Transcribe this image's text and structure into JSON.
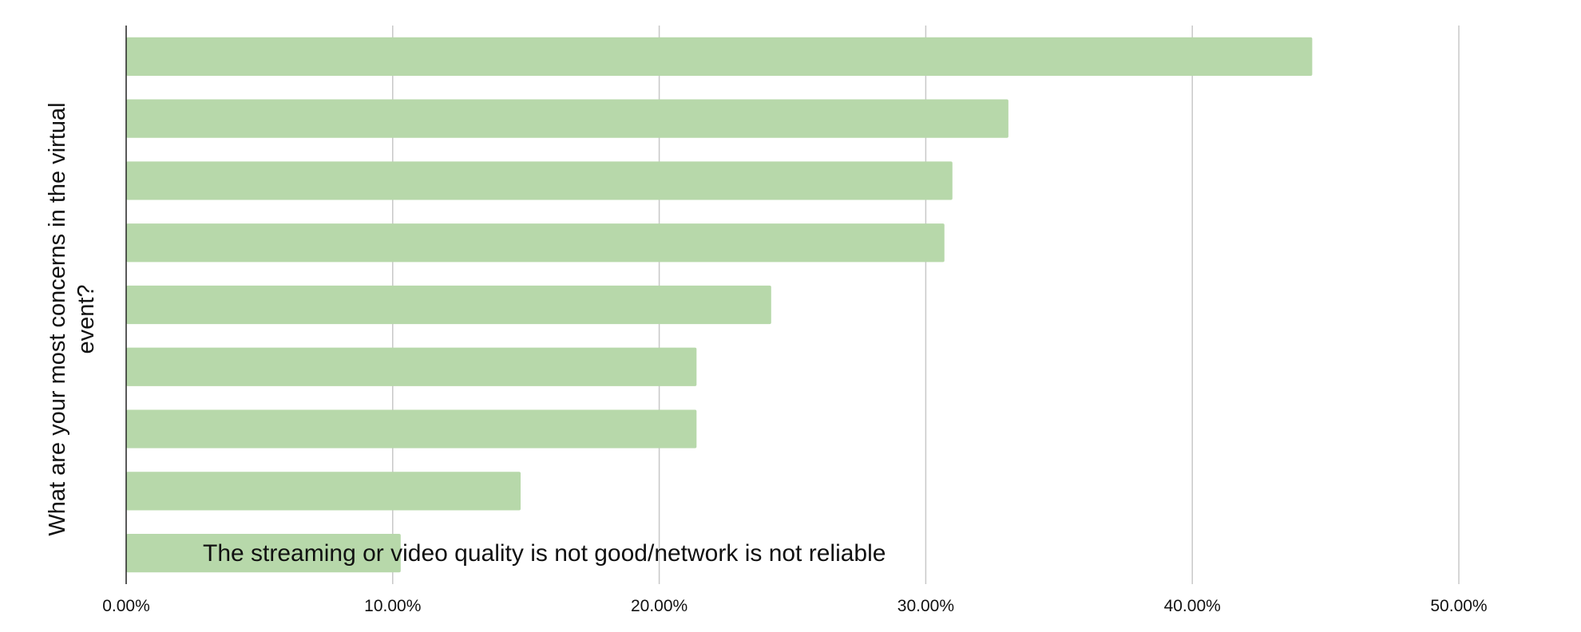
{
  "chart_data": {
    "type": "bar",
    "orientation": "horizontal",
    "title": "",
    "ylabel": "What are your most concerns in the virtual event?",
    "xlabel": "",
    "xlim": [
      0,
      0.5
    ],
    "x_ticks": [
      0,
      0.1,
      0.2,
      0.3,
      0.4,
      0.5
    ],
    "x_tick_labels": [
      "0.00%",
      "10.00%",
      "20.00%",
      "30.00%",
      "40.00%",
      "50.00%"
    ],
    "values": [
      0.445,
      0.331,
      0.31,
      0.307,
      0.242,
      0.214,
      0.214,
      0.148,
      0.103
    ],
    "bar_color": "#b7d8aa",
    "grid": true,
    "annotation": {
      "text": "The streaming or video quality is not good/network is not reliable",
      "bar_index": 8
    }
  }
}
